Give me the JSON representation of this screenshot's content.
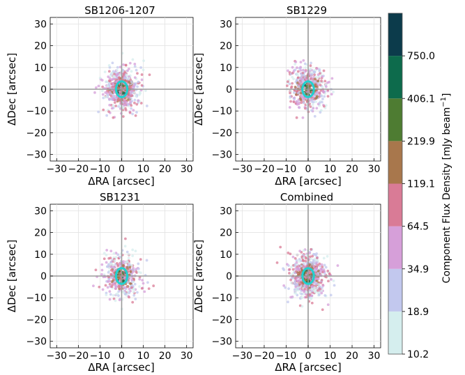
{
  "chart_data": [
    {
      "type": "scatter",
      "title": "SB1206-1207",
      "xlabel": "ΔRA [arcsec]",
      "ylabel": "ΔDec [arcsec]",
      "xlim": [
        -33,
        33
      ],
      "ylim": [
        -33,
        33
      ],
      "xticks": [
        "−30",
        "−20",
        "−10",
        "0",
        "10",
        "20",
        "30"
      ],
      "yticks": [
        "30",
        "20",
        "10",
        "0",
        "−10",
        "−20",
        "−30"
      ],
      "grid": true,
      "beam_ellipse": {
        "x": 0,
        "y": 0,
        "width": 2.6,
        "height": 3.6,
        "color": "#21d1cf"
      }
    },
    {
      "type": "scatter",
      "title": "SB1229",
      "xlabel": "ΔRA [arcsec]",
      "ylabel": "ΔDec [arcsec]",
      "xlim": [
        -33,
        33
      ],
      "ylim": [
        -33,
        33
      ],
      "xticks": [
        "−30",
        "−20",
        "−10",
        "0",
        "10",
        "20",
        "30"
      ],
      "yticks": [
        "30",
        "20",
        "10",
        "0",
        "−10",
        "−20",
        "−30"
      ],
      "grid": true,
      "beam_ellipse": {
        "x": 0,
        "y": 0,
        "width": 2.6,
        "height": 3.6,
        "color": "#21d1cf"
      }
    },
    {
      "type": "scatter",
      "title": "SB1231",
      "xlabel": "ΔRA [arcsec]",
      "ylabel": "ΔDec [arcsec]",
      "xlim": [
        -33,
        33
      ],
      "ylim": [
        -33,
        33
      ],
      "xticks": [
        "−30",
        "−20",
        "−10",
        "0",
        "10",
        "20",
        "30"
      ],
      "yticks": [
        "30",
        "20",
        "10",
        "0",
        "−10",
        "−20",
        "−30"
      ],
      "grid": true,
      "beam_ellipse": {
        "x": 0,
        "y": 0,
        "width": 2.6,
        "height": 3.6,
        "color": "#21d1cf"
      }
    },
    {
      "type": "scatter",
      "title": "Combined",
      "xlabel": "ΔRA [arcsec]",
      "ylabel": "ΔDec [arcsec]",
      "xlim": [
        -33,
        33
      ],
      "ylim": [
        -33,
        33
      ],
      "xticks": [
        "−30",
        "−20",
        "−10",
        "0",
        "10",
        "20",
        "30"
      ],
      "yticks": [
        "30",
        "20",
        "10",
        "0",
        "−10",
        "−20",
        "−30"
      ],
      "grid": true,
      "beam_ellipse": {
        "x": 0,
        "y": 0,
        "width": 2.6,
        "height": 3.6,
        "color": "#21d1cf"
      }
    }
  ],
  "colorbar": {
    "label": "Component Flux Density [mJy beam",
    "label_superscript": "−1",
    "label_close": "]",
    "ticks": [
      "750.0",
      "406.1",
      "219.9",
      "119.1",
      "64.5",
      "34.9",
      "18.9",
      "10.2"
    ],
    "colors": [
      "#d5eeee",
      "#c2c8ee",
      "#d69fd9",
      "#d97b96",
      "#a8774c",
      "#4e7c32",
      "#0d6b4c",
      "#0c3b4b"
    ]
  }
}
